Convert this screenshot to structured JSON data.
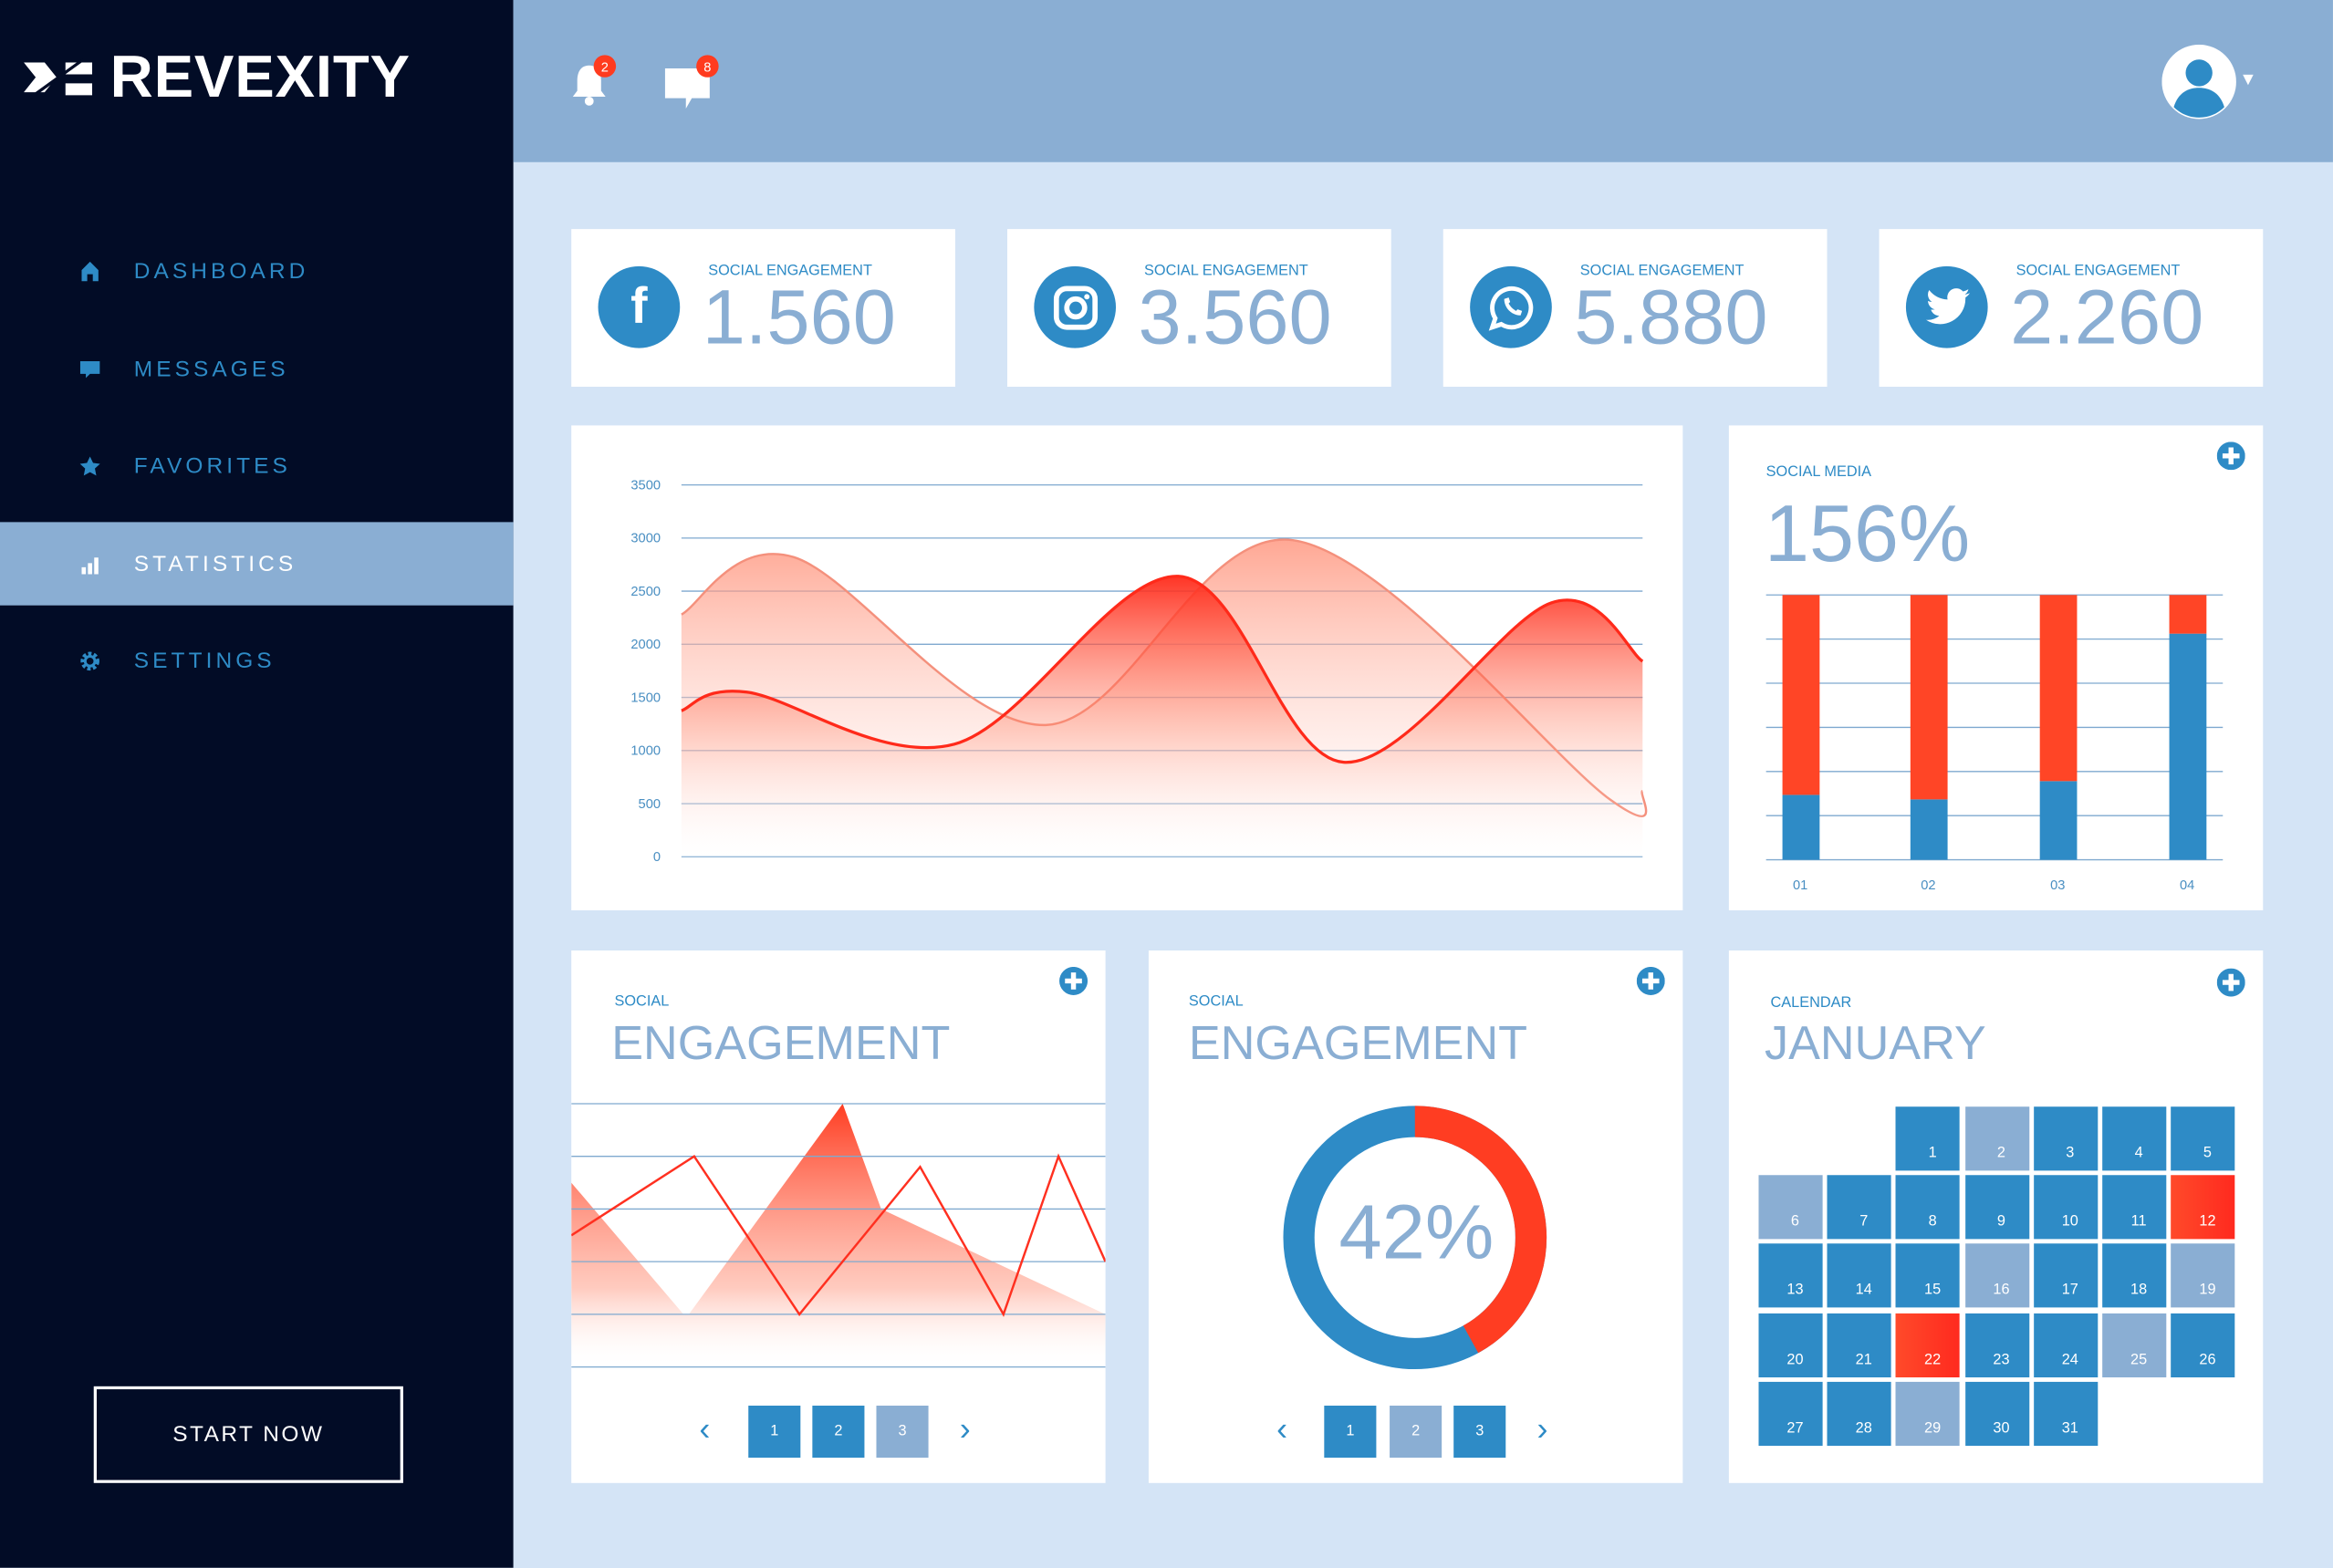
{
  "brand": {
    "name": "REVEXITY"
  },
  "sidebar": {
    "items": [
      {
        "label": "DASHBOARD",
        "icon": "home-icon"
      },
      {
        "label": "MESSAGES",
        "icon": "message-icon"
      },
      {
        "label": "FAVORITES",
        "icon": "star-icon"
      },
      {
        "label": "STATISTICS",
        "icon": "bar-chart-icon",
        "active": true
      },
      {
        "label": "SETTINGS",
        "icon": "gear-icon"
      }
    ],
    "cta": "START NOW"
  },
  "topbar": {
    "notifications": "2",
    "messages": "8"
  },
  "stats": [
    {
      "label": "SOCIAL ENGAGEMENT",
      "value": "1.560",
      "icon": "facebook-icon"
    },
    {
      "label": "SOCIAL ENGAGEMENT",
      "value": "3.560",
      "icon": "instagram-icon"
    },
    {
      "label": "SOCIAL ENGAGEMENT",
      "value": "5.880",
      "icon": "whatsapp-icon"
    },
    {
      "label": "SOCIAL ENGAGEMENT",
      "value": "2.260",
      "icon": "twitter-icon"
    }
  ],
  "social_media": {
    "label": "SOCIAL MEDIA",
    "value": "156%"
  },
  "engagement_chart": {
    "label": "SOCIAL",
    "title": "ENGAGEMENT",
    "pages": [
      "1",
      "2",
      "3"
    ],
    "active_page": "3"
  },
  "engagement_donut": {
    "label": "SOCIAL",
    "title": "ENGAGEMENT",
    "value_text": "42%",
    "pages": [
      "1",
      "2",
      "3"
    ],
    "active_page": "2"
  },
  "calendar": {
    "label": "CALENDAR",
    "month": "JANUARY",
    "start_col": 2,
    "days": [
      1,
      2,
      3,
      4,
      5,
      6,
      7,
      8,
      9,
      10,
      11,
      12,
      13,
      14,
      15,
      16,
      17,
      18,
      19,
      20,
      21,
      22,
      23,
      24,
      25,
      26,
      27,
      28,
      29,
      30,
      31
    ],
    "muted": [
      2,
      6,
      16,
      19,
      25,
      29
    ],
    "highlighted": [
      12,
      22
    ]
  },
  "colors": {
    "blue": "#2e8bc6",
    "light": "#8aaed3",
    "red": "#ff3d22",
    "navy": "#020c26"
  },
  "chart_data": [
    {
      "type": "area",
      "title": "",
      "ylim": [
        0,
        3500
      ],
      "yticks": [
        "3500",
        "3000",
        "2500",
        "2000",
        "1500",
        "1000",
        "500",
        "0"
      ],
      "xlim": [
        0,
        100
      ],
      "series": [
        {
          "name": "series-light",
          "x": [
            0,
            11.7,
            37.9,
            63.6,
            96.6,
            100
          ],
          "y": [
            2280,
            2820,
            1240,
            2980,
            540,
            620
          ]
        },
        {
          "name": "series-dark",
          "x": [
            0,
            6.8,
            28.4,
            51.7,
            68.9,
            90.5,
            100
          ],
          "y": [
            1375,
            1550,
            1060,
            2640,
            890,
            2390,
            1840
          ]
        }
      ]
    },
    {
      "type": "bar",
      "stacked": true,
      "categories": [
        "01",
        "02",
        "03",
        "04"
      ],
      "series": [
        {
          "name": "blue",
          "values": [
            24.5,
            22.8,
            29.7,
            85.4
          ]
        },
        {
          "name": "red",
          "values": [
            75.5,
            77.2,
            70.3,
            14.6
          ]
        }
      ],
      "ylim": [
        0,
        100
      ]
    },
    {
      "type": "line",
      "ylim": [
        0,
        5
      ],
      "xlim": [
        0,
        1
      ],
      "series": [
        {
          "name": "line",
          "x": [
            0,
            0.23,
            0.427,
            0.653,
            0.809,
            0.912,
            1
          ],
          "y": [
            2.5,
            4,
            1,
            3.8,
            1,
            4,
            2
          ]
        },
        {
          "name": "area",
          "x": [
            0,
            0.21,
            0.22,
            0.508,
            0.58,
            1
          ],
          "y": [
            3.5,
            1,
            1,
            5,
            3,
            1
          ]
        }
      ]
    },
    {
      "type": "pie",
      "donut": true,
      "values": [
        42,
        58
      ],
      "labels": [
        "red",
        "blue"
      ]
    }
  ]
}
